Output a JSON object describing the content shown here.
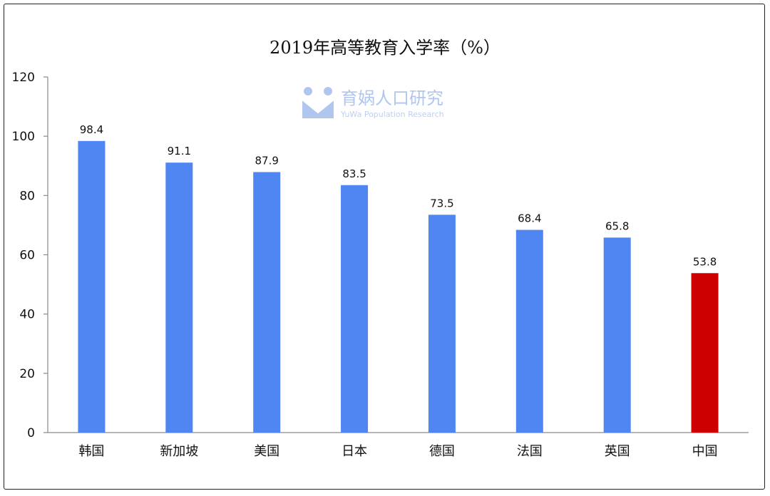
{
  "chart_data": {
    "type": "bar",
    "title": "2019年高等教育入学率（%）",
    "categories": [
      "韩国",
      "新加坡",
      "美国",
      "日本",
      "德国",
      "法国",
      "英国",
      "中国"
    ],
    "values": [
      98.4,
      91.1,
      87.9,
      83.5,
      73.5,
      68.4,
      65.8,
      53.8
    ],
    "data_labels": [
      "98.4",
      "91.1",
      "87.9",
      "83.5",
      "73.5",
      "68.4",
      "65.8",
      "53.8"
    ],
    "ylim": [
      0,
      120
    ],
    "yticks": [
      0,
      20,
      40,
      60,
      80,
      100,
      120
    ],
    "xlabel": "",
    "ylabel": "",
    "grid": false,
    "colors": {
      "default": "#4f86f2",
      "highlight": "#cc0000"
    },
    "highlight_category": "中国"
  },
  "watermark": {
    "name": "育娲人口研究",
    "subtitle": "YuWa Population Research",
    "icon": "yuwa-logo-icon",
    "color": "#a9c0ee"
  }
}
